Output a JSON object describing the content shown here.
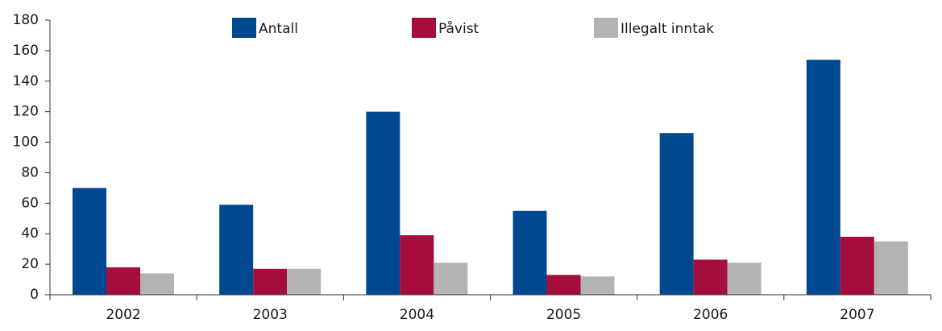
{
  "chart_data": {
    "type": "bar",
    "categories": [
      "2002",
      "2003",
      "2004",
      "2005",
      "2006",
      "2007"
    ],
    "series": [
      {
        "name": "Antall",
        "color": "#004990",
        "values": [
          70,
          59,
          120,
          55,
          106,
          154
        ]
      },
      {
        "name": "Påvist",
        "color": "#a50d3c",
        "values": [
          18,
          17,
          39,
          13,
          23,
          38
        ]
      },
      {
        "name": "Illegalt inntak",
        "color": "#b3b3b3",
        "values": [
          14,
          17,
          21,
          12,
          21,
          35
        ]
      }
    ],
    "ylim": [
      0,
      180
    ],
    "yticks": [
      0,
      20,
      40,
      60,
      80,
      100,
      120,
      140,
      160,
      180
    ],
    "grid": false,
    "legend": "top"
  }
}
